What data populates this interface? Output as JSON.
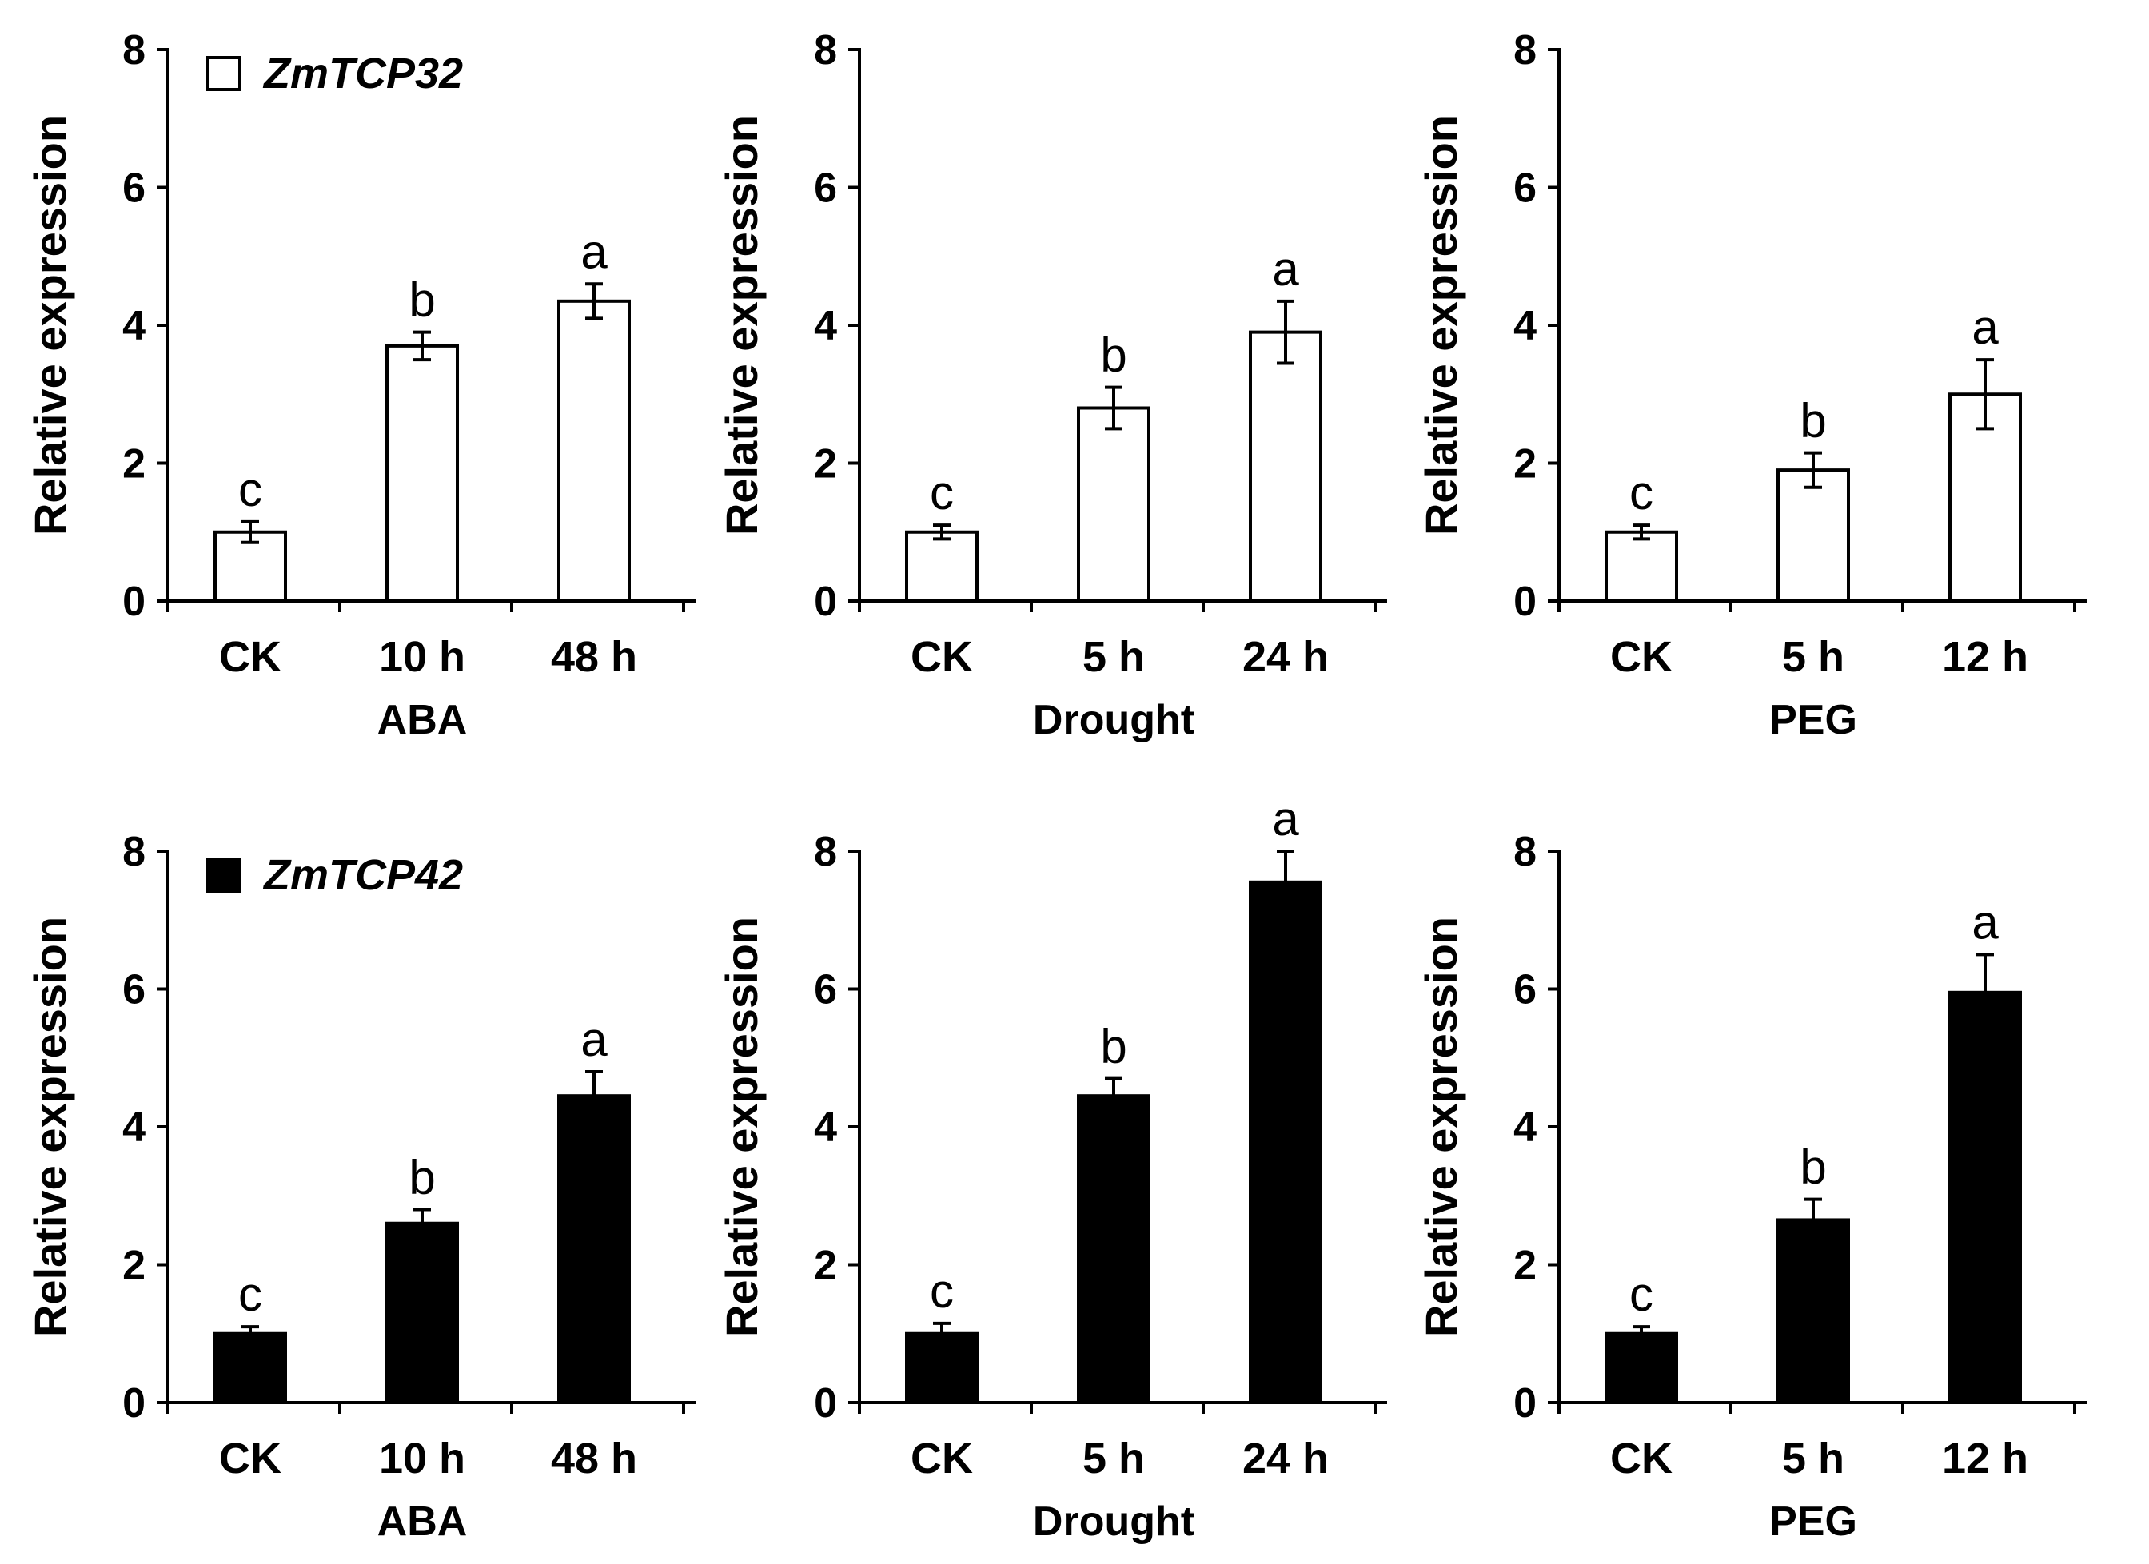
{
  "chart_data": [
    {
      "type": "bar",
      "gene": "ZmTCP32",
      "fill": "white",
      "legend": "ZmTCP32",
      "categories": [
        "CK",
        "10 h",
        "48 h"
      ],
      "values": [
        1.0,
        3.7,
        4.35
      ],
      "errors": [
        0.15,
        0.2,
        0.25
      ],
      "significance": [
        "c",
        "b",
        "a"
      ],
      "xlabel": "ABA",
      "ylabel": "Relative expression",
      "ylim": [
        0,
        8
      ],
      "yticks": [
        "0",
        "2",
        "4",
        "6",
        "8"
      ]
    },
    {
      "type": "bar",
      "gene": "ZmTCP32",
      "fill": "white",
      "categories": [
        "CK",
        "5 h",
        "24 h"
      ],
      "values": [
        1.0,
        2.8,
        3.9
      ],
      "errors": [
        0.1,
        0.3,
        0.45
      ],
      "significance": [
        "c",
        "b",
        "a"
      ],
      "xlabel": "Drought",
      "ylabel": "Relative expression",
      "ylim": [
        0,
        8
      ],
      "yticks": [
        "0",
        "2",
        "4",
        "6",
        "8"
      ]
    },
    {
      "type": "bar",
      "gene": "ZmTCP32",
      "fill": "white",
      "categories": [
        "CK",
        "5 h",
        "12 h"
      ],
      "values": [
        1.0,
        1.9,
        3.0
      ],
      "errors": [
        0.1,
        0.25,
        0.5
      ],
      "significance": [
        "c",
        "b",
        "a"
      ],
      "xlabel": "PEG",
      "ylabel": "Relative expression",
      "ylim": [
        0,
        8
      ],
      "yticks": [
        "0",
        "2",
        "4",
        "6",
        "8"
      ]
    },
    {
      "type": "bar",
      "gene": "ZmTCP42",
      "fill": "black",
      "legend": "ZmTCP42",
      "categories": [
        "CK",
        "10 h",
        "48 h"
      ],
      "values": [
        1.0,
        2.6,
        4.45
      ],
      "errors": [
        0.1,
        0.2,
        0.35
      ],
      "significance": [
        "c",
        "b",
        "a"
      ],
      "xlabel": "ABA",
      "ylabel": "Relative expression",
      "ylim": [
        0,
        8
      ],
      "yticks": [
        "0",
        "2",
        "4",
        "6",
        "8"
      ]
    },
    {
      "type": "bar",
      "gene": "ZmTCP42",
      "fill": "black",
      "categories": [
        "CK",
        "5 h",
        "24 h"
      ],
      "values": [
        1.0,
        4.45,
        7.55
      ],
      "errors": [
        0.15,
        0.25,
        0.45
      ],
      "significance": [
        "c",
        "b",
        "a"
      ],
      "xlabel": "Drought",
      "ylabel": "Relative expression",
      "ylim": [
        0,
        8
      ],
      "yticks": [
        "0",
        "2",
        "4",
        "6",
        "8"
      ]
    },
    {
      "type": "bar",
      "gene": "ZmTCP42",
      "fill": "black",
      "categories": [
        "CK",
        "5 h",
        "12 h"
      ],
      "values": [
        1.0,
        2.65,
        5.95
      ],
      "errors": [
        0.1,
        0.3,
        0.55
      ],
      "significance": [
        "c",
        "b",
        "a"
      ],
      "xlabel": "PEG",
      "ylabel": "Relative expression",
      "ylim": [
        0,
        8
      ],
      "yticks": [
        "0",
        "2",
        "4",
        "6",
        "8"
      ]
    }
  ]
}
